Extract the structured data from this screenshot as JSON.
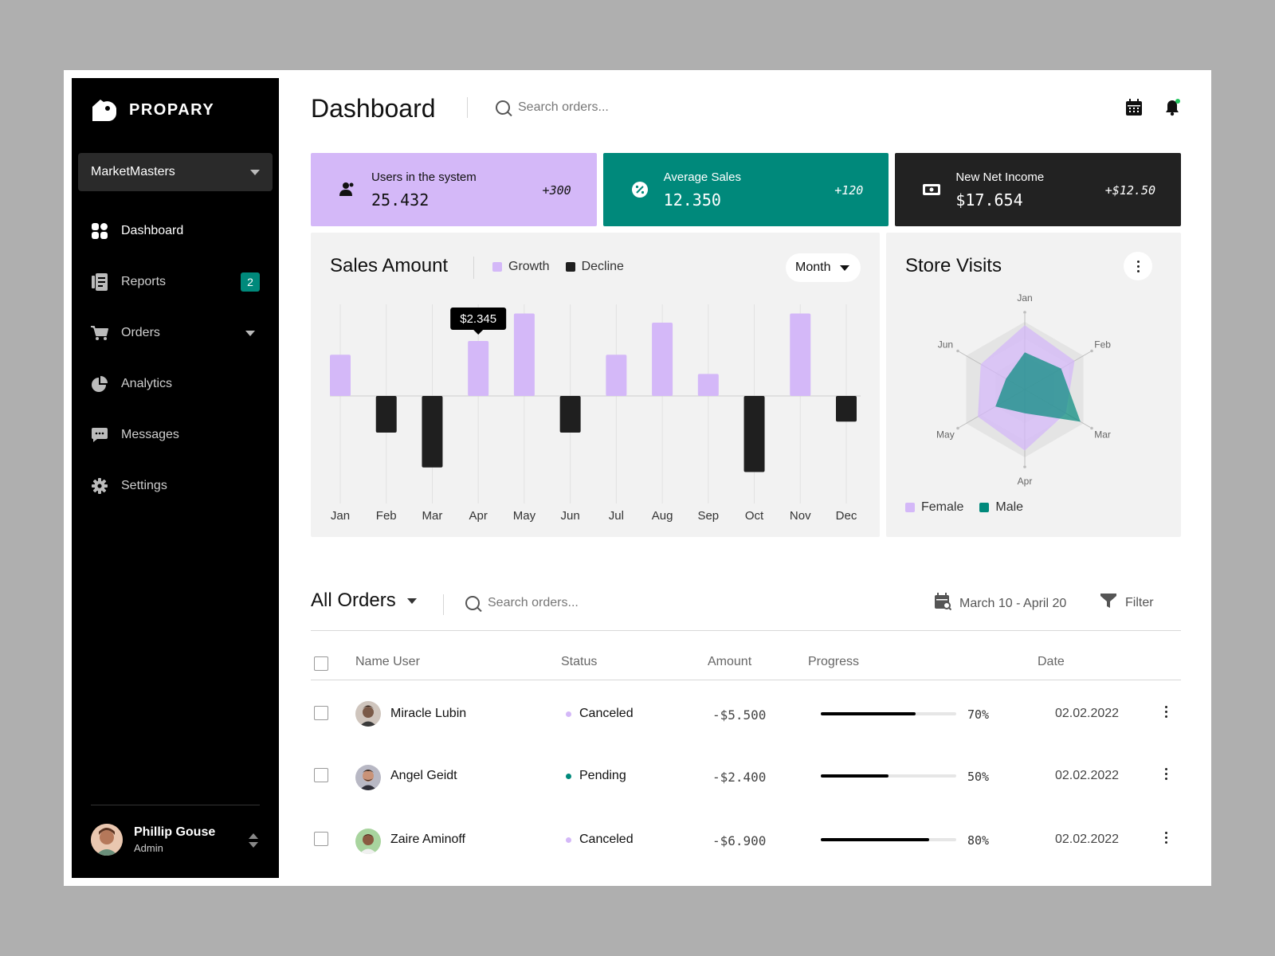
{
  "brand": {
    "name": "PROPARY"
  },
  "workspace": {
    "name": "MarketMasters"
  },
  "sidebar": {
    "items": [
      {
        "label": "Dashboard",
        "icon": "grid-icon",
        "active": true
      },
      {
        "label": "Reports",
        "icon": "document-icon",
        "badge": "2"
      },
      {
        "label": "Orders",
        "icon": "cart-icon",
        "has_submenu": true
      },
      {
        "label": "Analytics",
        "icon": "pie-icon"
      },
      {
        "label": "Messages",
        "icon": "message-icon"
      },
      {
        "label": "Settings",
        "icon": "gear-icon"
      }
    ]
  },
  "user": {
    "name": "Phillip Gouse",
    "role": "Admin"
  },
  "header": {
    "title": "Dashboard",
    "search_placeholder": "Search orders..."
  },
  "stats": [
    {
      "label": "Users in the system",
      "value": "25.432",
      "delta": "+300",
      "bg": "#d4b8f8",
      "fg": "#111111",
      "icon": "users-icon"
    },
    {
      "label": "Average Sales",
      "value": "12.350",
      "delta": "+120",
      "bg": "#00897b",
      "fg": "#ffffff",
      "icon": "percent-icon"
    },
    {
      "label": "New Net Income",
      "value": "$17.654",
      "delta": "+$12.50",
      "bg": "#222222",
      "fg": "#ffffff",
      "icon": "cash-icon"
    }
  ],
  "sales_panel": {
    "title": "Sales Amount",
    "legend": [
      "Growth",
      "Decline"
    ],
    "period": "Month",
    "tooltip": "$2.345"
  },
  "visits_panel": {
    "title": "Store Visits",
    "legend": [
      "Female",
      "Male"
    ]
  },
  "colors": {
    "growth": "#d4b8f8",
    "decline": "#1f1f1f",
    "female": "#d4b8f8",
    "male": "#00897b",
    "accent": "#00897b"
  },
  "chart_data": [
    {
      "type": "bar",
      "title": "Sales Amount",
      "categories": [
        "Jan",
        "Feb",
        "Mar",
        "Apr",
        "May",
        "Jun",
        "Jul",
        "Aug",
        "Sep",
        "Oct",
        "Nov",
        "Dec"
      ],
      "series": [
        {
          "name": "Growth",
          "values": [
            45,
            0,
            0,
            60,
            90,
            0,
            45,
            80,
            24,
            0,
            90,
            0
          ]
        },
        {
          "name": "Decline",
          "values": [
            0,
            -40,
            -78,
            0,
            0,
            -40,
            0,
            0,
            0,
            -83,
            0,
            -28
          ]
        }
      ],
      "annotation": {
        "category": "Apr",
        "text": "$2.345"
      },
      "ylim": [
        -115,
        100
      ],
      "grid": true,
      "legend_position": "top"
    },
    {
      "type": "radar",
      "title": "Store Visits",
      "categories": [
        "Jan",
        "Feb",
        "Mar",
        "Apr",
        "May",
        "Jun"
      ],
      "series": [
        {
          "name": "Female",
          "values": [
            95,
            85,
            70,
            90,
            80,
            75
          ]
        },
        {
          "name": "Male",
          "values": [
            55,
            62,
            95,
            35,
            50,
            32
          ]
        }
      ],
      "max": 100,
      "legend_position": "bottom-left"
    }
  ],
  "orders": {
    "title": "All Orders",
    "search_placeholder": "Search orders...",
    "date_range": "March 10 - April 20",
    "filter_label": "Filter",
    "columns": [
      "Name User",
      "Status",
      "Amount",
      "Progress",
      "Date"
    ],
    "rows": [
      {
        "name": "Miracle Lubin",
        "status": "Canceled",
        "status_color": "#d4b8f8",
        "amount": "-$5.500",
        "progress": 0.7,
        "progress_label": "70%",
        "date": "02.02.2022",
        "avatar_color": "#7a5a48"
      },
      {
        "name": "Angel Geidt",
        "status": "Pending",
        "status_color": "#00897b",
        "amount": "-$2.400",
        "progress": 0.5,
        "progress_label": "50%",
        "date": "02.02.2022",
        "avatar_color": "#a8a8b8"
      },
      {
        "name": "Zaire Aminoff",
        "status": "Canceled",
        "status_color": "#d4b8f8",
        "amount": "-$6.900",
        "progress": 0.8,
        "progress_label": "80%",
        "date": "02.02.2022",
        "avatar_color": "#8fbf8a"
      }
    ]
  }
}
